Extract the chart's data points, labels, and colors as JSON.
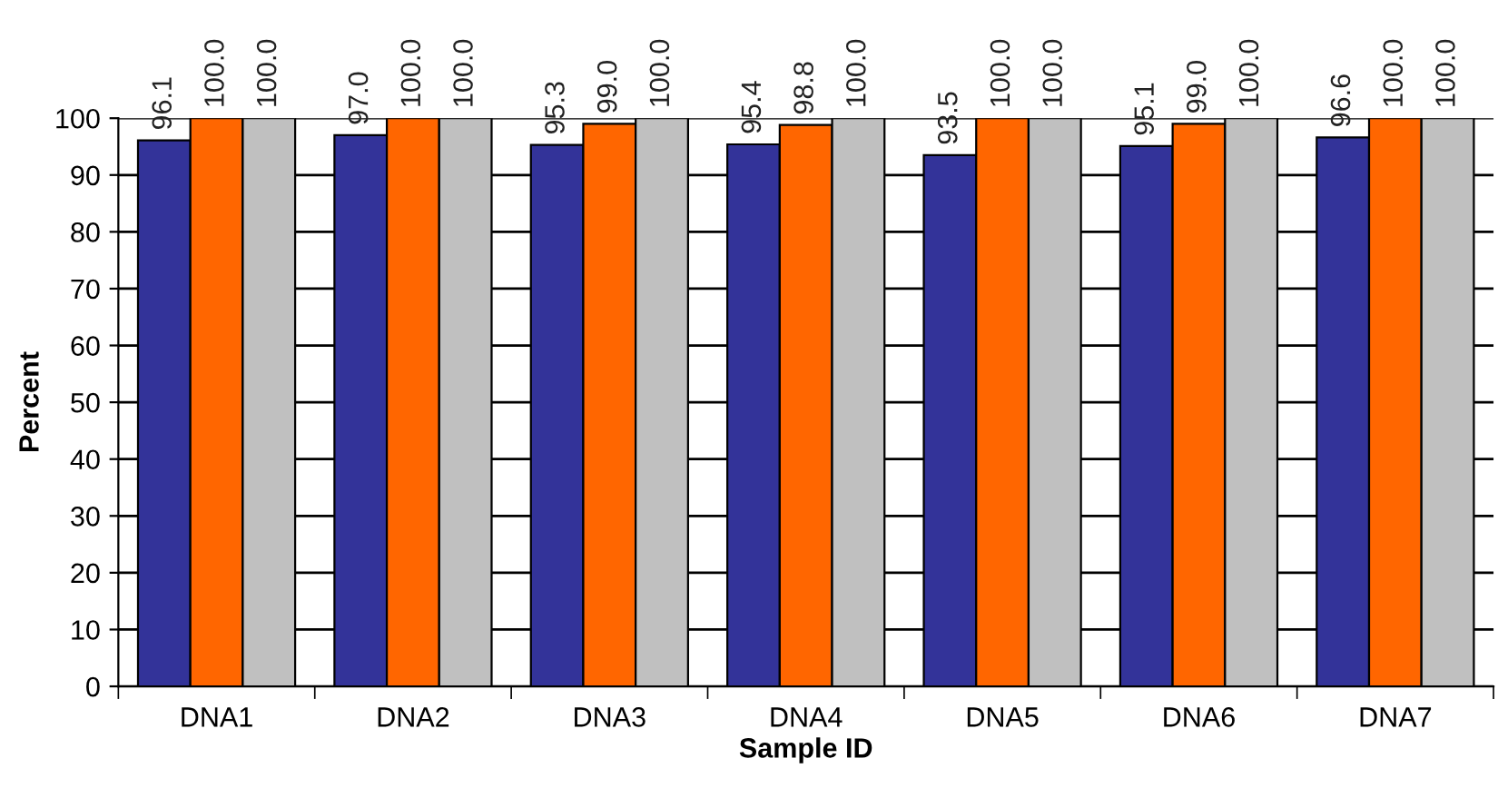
{
  "chart_data": {
    "type": "bar",
    "xlabel": "Sample ID",
    "ylabel": "Percent",
    "categories": [
      "DNA1",
      "DNA2",
      "DNA3",
      "DNA4",
      "DNA5",
      "DNA6",
      "DNA7"
    ],
    "series": [
      {
        "color": "#333399",
        "values": [
          96.1,
          97.0,
          95.3,
          95.4,
          93.5,
          95.1,
          96.6
        ],
        "value_labels": [
          "96.1",
          "97.0",
          "95.3",
          "95.4",
          "93.5",
          "95.1",
          "96.6"
        ]
      },
      {
        "color": "#ff6600",
        "values": [
          100.0,
          100.0,
          99.0,
          98.8,
          100.0,
          99.0,
          100.0
        ],
        "value_labels": [
          "100.0",
          "100.0",
          "99.0",
          "98.8",
          "100.0",
          "99.0",
          "100.0"
        ]
      },
      {
        "color": "#c0c0c0",
        "values": [
          100.0,
          100.0,
          100.0,
          100.0,
          100.0,
          100.0,
          100.0
        ],
        "value_labels": [
          "100.0",
          "100.0",
          "100.0",
          "100.0",
          "100.0",
          "100.0",
          "100.0"
        ]
      }
    ],
    "ylim": [
      0,
      100
    ],
    "yticks": [
      0,
      10,
      20,
      30,
      40,
      50,
      60,
      70,
      80,
      90,
      100
    ],
    "grid": "y",
    "legend": false
  }
}
